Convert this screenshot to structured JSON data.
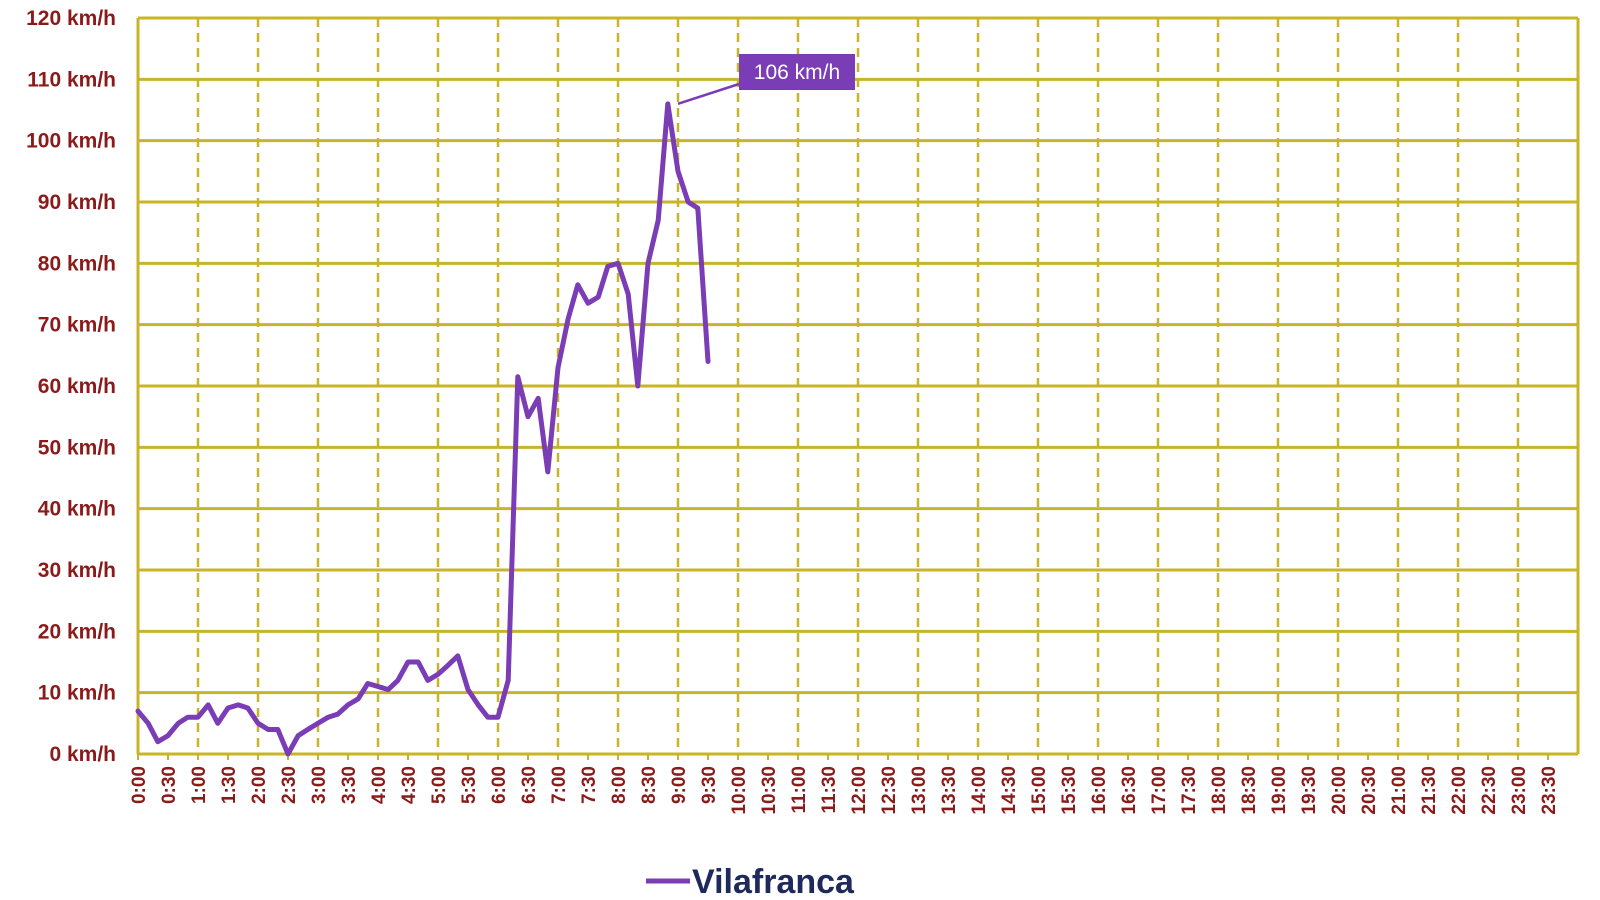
{
  "colors": {
    "grid": "#c8b42a",
    "tick_label": "#8b1a1a",
    "series": "#7a3db5",
    "legend_text": "#1f2a5c",
    "annotation_bg": "#7a3db5",
    "annotation_text": "#ffffff",
    "background": "#ffffff"
  },
  "chart_data": {
    "type": "line",
    "title": "",
    "xlabel": "",
    "ylabel": "",
    "ylim": [
      0,
      120
    ],
    "y_ticks": [
      0,
      10,
      20,
      30,
      40,
      50,
      60,
      70,
      80,
      90,
      100,
      110,
      120
    ],
    "y_tick_format": "{v} km/h",
    "xlim": [
      0,
      24
    ],
    "x_tick_labels": [
      "0:00",
      "0:30",
      "1:00",
      "1:30",
      "2:00",
      "2:30",
      "3:00",
      "3:30",
      "4:00",
      "4:30",
      "5:00",
      "5:30",
      "6:00",
      "6:30",
      "7:00",
      "7:30",
      "8:00",
      "8:30",
      "9:00",
      "9:30",
      "10:00",
      "10:30",
      "11:00",
      "11:30",
      "12:00",
      "12:30",
      "13:00",
      "13:30",
      "14:00",
      "14:30",
      "15:00",
      "15:30",
      "16:00",
      "16:30",
      "17:00",
      "17:30",
      "18:00",
      "18:30",
      "19:00",
      "19:30",
      "20:00",
      "20:30",
      "21:00",
      "21:30",
      "22:00",
      "22:30",
      "23:00",
      "23:30"
    ],
    "grid": true,
    "legend_position": "bottom",
    "annotation": {
      "text": "106 km/h",
      "x_hours": 9.0,
      "y": 106
    },
    "series": [
      {
        "name": "Vilafranca",
        "x_hours": [
          0.0,
          0.17,
          0.33,
          0.5,
          0.67,
          0.83,
          1.0,
          1.17,
          1.33,
          1.5,
          1.67,
          1.83,
          2.0,
          2.17,
          2.33,
          2.5,
          2.67,
          2.83,
          3.0,
          3.17,
          3.33,
          3.5,
          3.67,
          3.83,
          4.0,
          4.17,
          4.33,
          4.5,
          4.67,
          4.83,
          5.0,
          5.17,
          5.33,
          5.5,
          5.67,
          5.83,
          6.0,
          6.17,
          6.33,
          6.5,
          6.67,
          6.83,
          7.0,
          7.17,
          7.33,
          7.5,
          7.67,
          7.83,
          8.0,
          8.17,
          8.33,
          8.5,
          8.67,
          8.83,
          9.0,
          9.17,
          9.33,
          9.5
        ],
        "values": [
          7,
          5,
          2,
          3,
          5,
          6,
          6,
          8,
          5,
          7.5,
          8,
          7.5,
          5,
          4,
          4,
          0,
          3,
          4,
          5,
          6,
          6.5,
          8,
          9,
          11.5,
          11,
          10.5,
          12,
          15,
          15,
          12,
          13,
          14.5,
          16,
          10.5,
          8,
          6,
          6,
          12,
          61.5,
          55,
          58,
          46,
          63,
          71,
          76.5,
          73.5,
          74.5,
          79.5,
          80,
          75,
          60,
          80,
          87,
          106,
          95,
          90,
          89,
          64
        ]
      }
    ]
  }
}
